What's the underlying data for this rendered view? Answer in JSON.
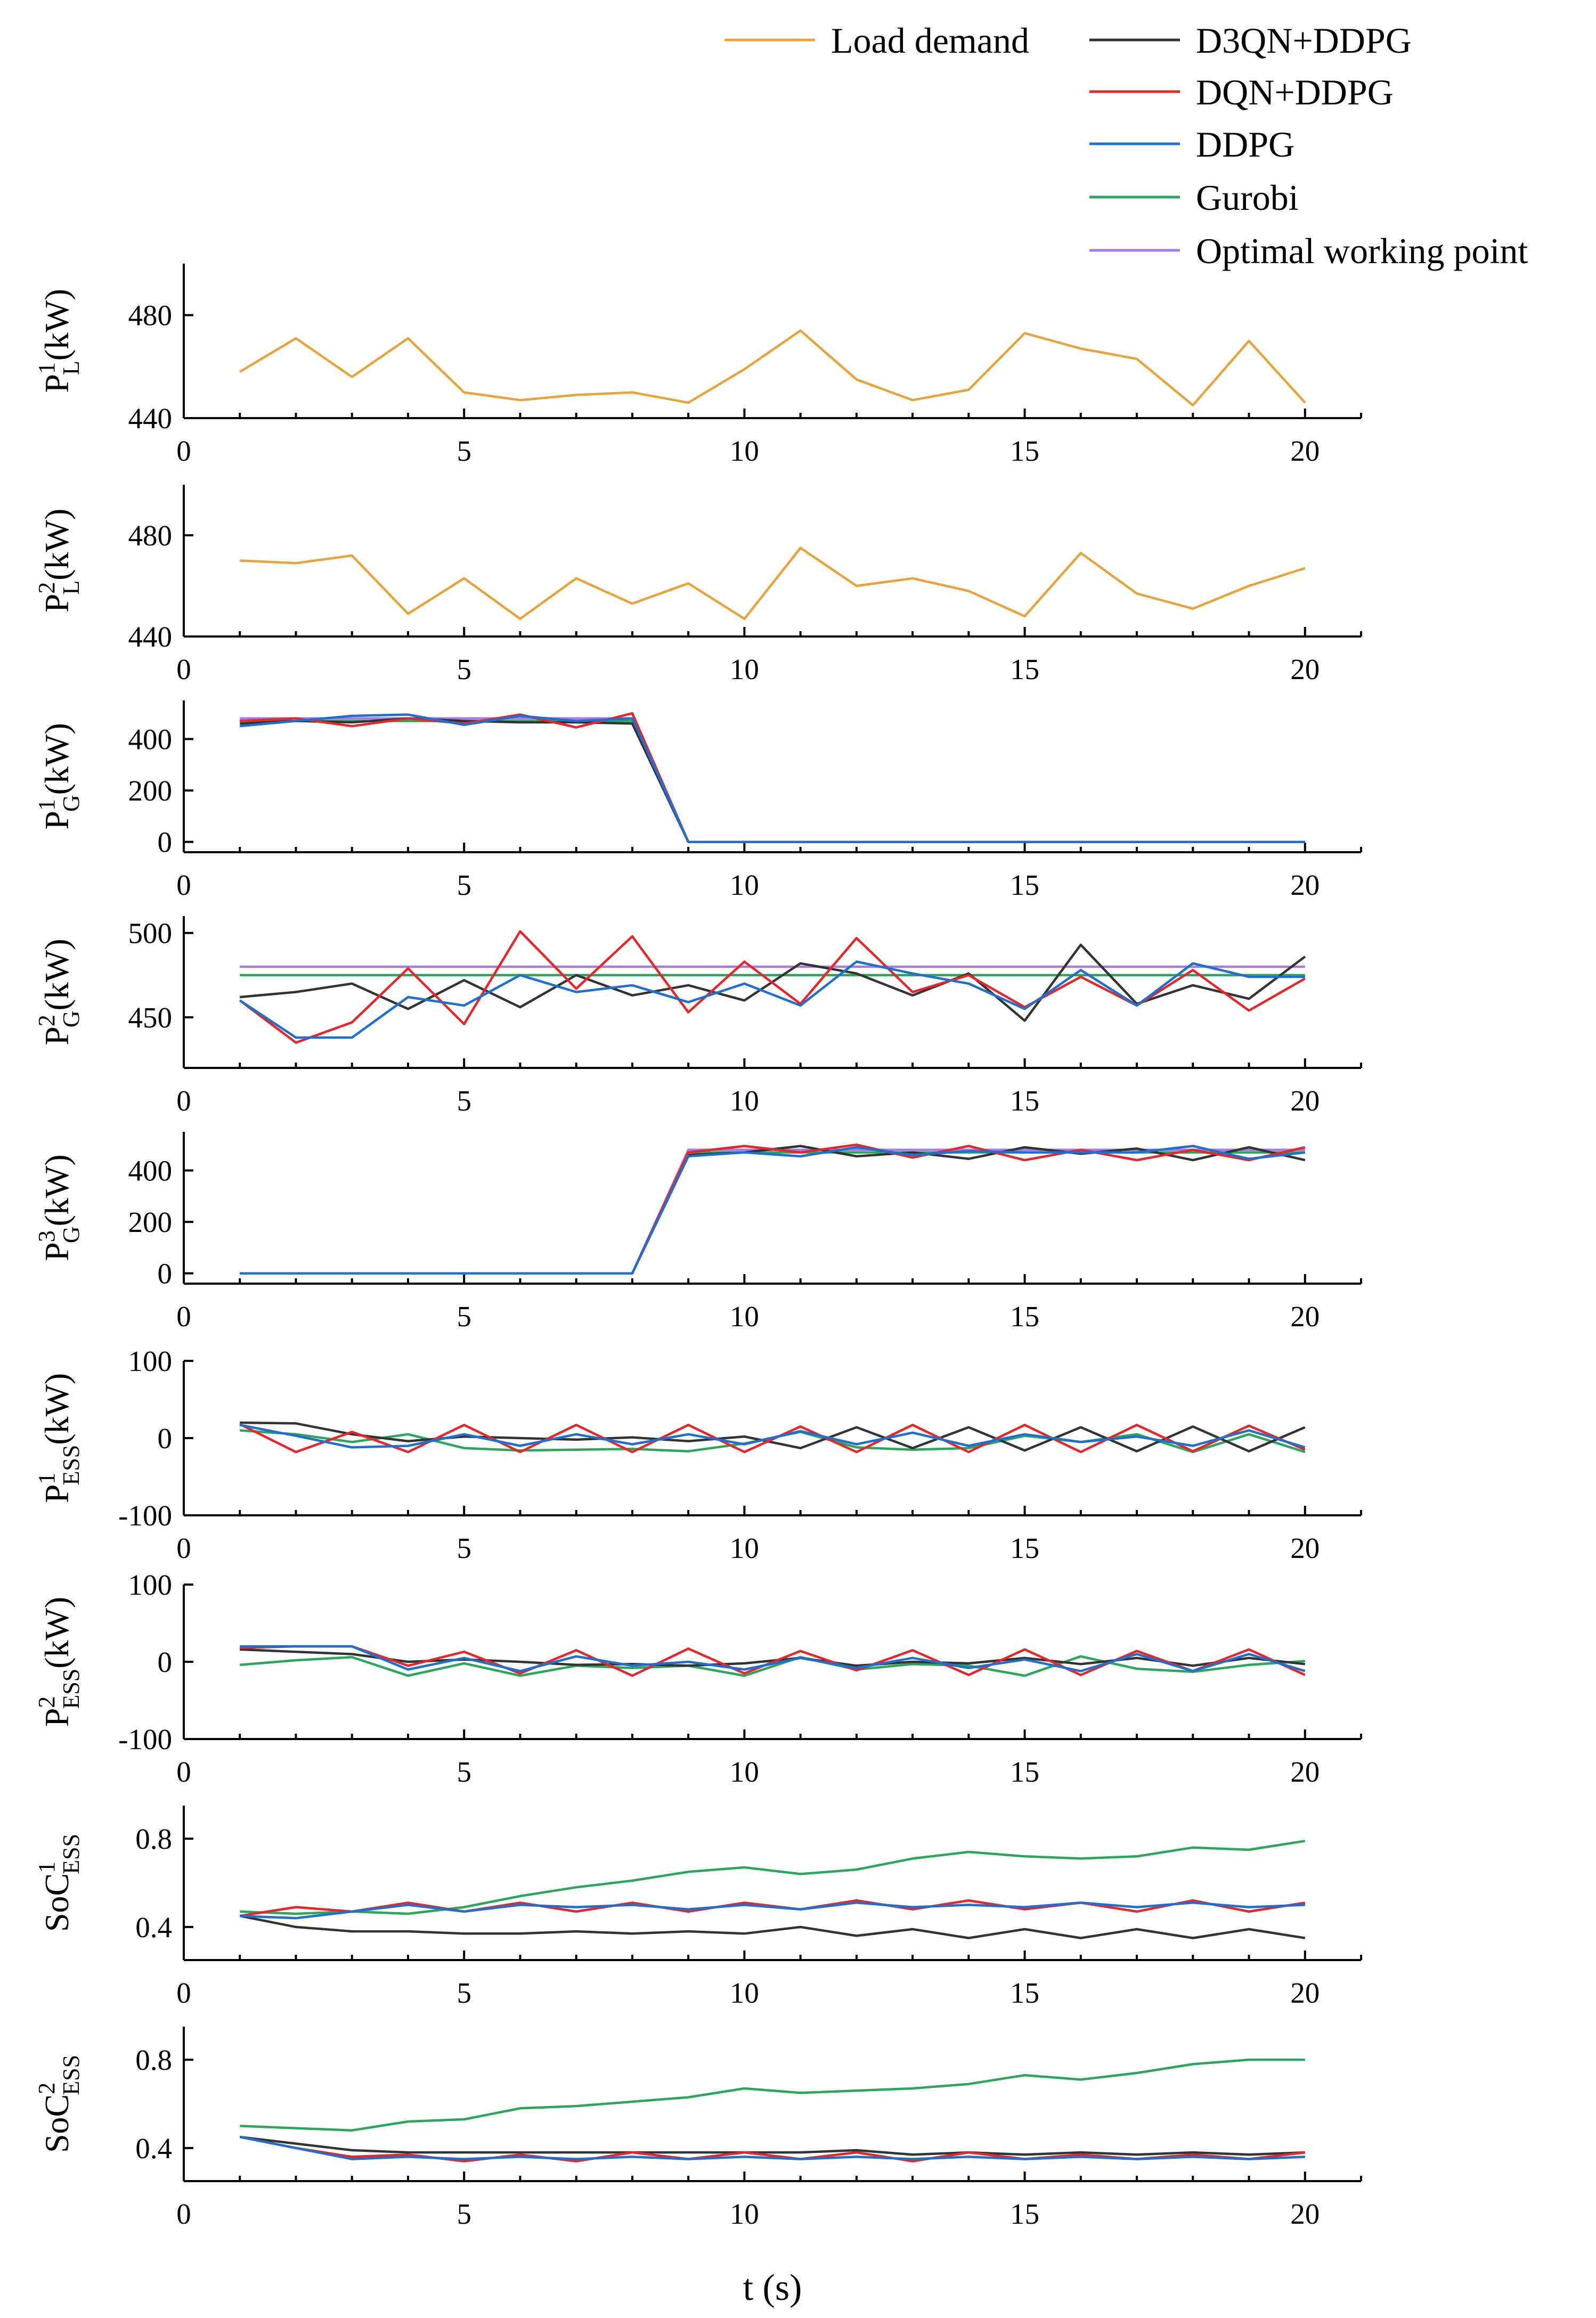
{
  "chart_data": {
    "type": "line",
    "xlabel": "t (s)",
    "xlim": [
      0,
      21
    ],
    "xticks": [
      0,
      5,
      10,
      15,
      20
    ],
    "x": [
      1,
      2,
      3,
      4,
      5,
      6,
      7,
      8,
      9,
      10,
      11,
      12,
      13,
      14,
      15,
      16,
      17,
      18,
      19,
      20
    ],
    "legend": [
      {
        "name": "Load demand",
        "color": "#E8A33A"
      },
      {
        "name": "D3QN+DDPG",
        "color": "#333333"
      },
      {
        "name": "DQN+DDPG",
        "color": "#E8262A"
      },
      {
        "name": "DDPG",
        "color": "#1F6FD1"
      },
      {
        "name": "Gurobi",
        "color": "#2BA65A"
      },
      {
        "name": "Optimal working point",
        "color": "#A97BE6"
      }
    ],
    "panels": [
      {
        "id": "PL1",
        "ylabel_base": "P",
        "ylabel_sup": "1",
        "ylabel_sub": "L",
        "ylabel_unit": "(kW)",
        "ylim": [
          440,
          500
        ],
        "yticks": [
          440,
          480
        ],
        "series": [
          {
            "name": "Load demand",
            "values": [
              458,
              471,
              456,
              471,
              450,
              447,
              449,
              450,
              446,
              459,
              474,
              455,
              447,
              451,
              473,
              467,
              463,
              445,
              470,
              446
            ]
          }
        ]
      },
      {
        "id": "PL2",
        "ylabel_base": "P",
        "ylabel_sup": "2",
        "ylabel_sub": "L",
        "ylabel_unit": "(kW)",
        "ylim": [
          440,
          500
        ],
        "yticks": [
          440,
          480
        ],
        "series": [
          {
            "name": "Load demand",
            "values": [
              470,
              469,
              472,
              449,
              463,
              447,
              463,
              453,
              461,
              447,
              475,
              460,
              463,
              458,
              448,
              473,
              457,
              451,
              460,
              467
            ]
          }
        ]
      },
      {
        "id": "PG1",
        "ylabel_base": "P",
        "ylabel_sup": "1",
        "ylabel_sub": "G",
        "ylabel_unit": "(kW)",
        "ylim": [
          -40,
          550
        ],
        "yticks": [
          0,
          200,
          400
        ],
        "series": [
          {
            "name": "Optimal working point",
            "values": [
              480,
              480,
              480,
              480,
              480,
              480,
              480,
              480,
              0,
              0,
              0,
              0,
              0,
              0,
              0,
              0,
              0,
              0,
              0,
              0
            ]
          },
          {
            "name": "Gurobi",
            "values": [
              470,
              470,
              470,
              470,
              470,
              470,
              470,
              470,
              0,
              0,
              0,
              0,
              0,
              0,
              0,
              0,
              0,
              0,
              0,
              0
            ]
          },
          {
            "name": "D3QN+DDPG",
            "values": [
              460,
              470,
              465,
              480,
              470,
              465,
              465,
              460,
              0,
              0,
              0,
              0,
              0,
              0,
              0,
              0,
              0,
              0,
              0,
              0
            ]
          },
          {
            "name": "DQN+DDPG",
            "values": [
              470,
              480,
              450,
              480,
              460,
              495,
              445,
              500,
              0,
              0,
              0,
              0,
              0,
              0,
              0,
              0,
              0,
              0,
              0,
              0
            ]
          },
          {
            "name": "DDPG",
            "values": [
              450,
              470,
              490,
              495,
              455,
              490,
              470,
              480,
              0,
              0,
              0,
              0,
              0,
              0,
              0,
              0,
              0,
              0,
              0,
              0
            ]
          }
        ]
      },
      {
        "id": "PG2",
        "ylabel_base": "P",
        "ylabel_sup": "2",
        "ylabel_sub": "G",
        "ylabel_unit": "(kW)",
        "ylim": [
          420,
          510
        ],
        "yticks": [
          450,
          500
        ],
        "series": [
          {
            "name": "Optimal working point",
            "values": [
              480,
              480,
              480,
              480,
              480,
              480,
              480,
              480,
              480,
              480,
              480,
              480,
              480,
              480,
              480,
              480,
              480,
              480,
              480,
              480
            ]
          },
          {
            "name": "Gurobi",
            "values": [
              475,
              475,
              475,
              475,
              475,
              475,
              475,
              475,
              475,
              475,
              475,
              475,
              475,
              475,
              475,
              475,
              475,
              475,
              475,
              475
            ]
          },
          {
            "name": "D3QN+DDPG",
            "values": [
              462,
              465,
              470,
              455,
              472,
              456,
              475,
              463,
              469,
              460,
              482,
              476,
              463,
              476,
              448,
              493,
              458,
              469,
              461,
              486
            ]
          },
          {
            "name": "DQN+DDPG",
            "values": [
              460,
              435,
              447,
              479,
              446,
              501,
              467,
              498,
              453,
              483,
              458,
              497,
              465,
              475,
              456,
              474,
              457,
              478,
              454,
              473
            ]
          },
          {
            "name": "DDPG",
            "values": [
              460,
              438,
              438,
              462,
              457,
              475,
              465,
              469,
              459,
              470,
              457,
              483,
              476,
              470,
              455,
              478,
              457,
              482,
              474,
              474
            ]
          }
        ]
      },
      {
        "id": "PG3",
        "ylabel_base": "P",
        "ylabel_sup": "3",
        "ylabel_sub": "G",
        "ylabel_unit": "(kW)",
        "ylim": [
          -40,
          550
        ],
        "yticks": [
          0,
          200,
          400
        ],
        "series": [
          {
            "name": "Optimal working point",
            "values": [
              0,
              0,
              0,
              0,
              0,
              0,
              0,
              0,
              480,
              480,
              480,
              480,
              480,
              480,
              480,
              480,
              480,
              480,
              480,
              480
            ]
          },
          {
            "name": "Gurobi",
            "values": [
              0,
              0,
              0,
              0,
              0,
              0,
              0,
              0,
              470,
              470,
              470,
              470,
              470,
              470,
              470,
              470,
              470,
              470,
              470,
              470
            ]
          },
          {
            "name": "D3QN+DDPG",
            "values": [
              0,
              0,
              0,
              0,
              0,
              0,
              0,
              0,
              460,
              470,
              495,
              455,
              470,
              445,
              490,
              465,
              485,
              440,
              490,
              440
            ]
          },
          {
            "name": "DQN+DDPG",
            "values": [
              0,
              0,
              0,
              0,
              0,
              0,
              0,
              0,
              470,
              495,
              470,
              500,
              450,
              495,
              440,
              480,
              440,
              480,
              440,
              490
            ]
          },
          {
            "name": "DDPG",
            "values": [
              0,
              0,
              0,
              0,
              0,
              0,
              0,
              0,
              455,
              470,
              455,
              490,
              460,
              475,
              470,
              470,
              470,
              495,
              445,
              470
            ]
          }
        ]
      },
      {
        "id": "PESS1",
        "ylabel_base": "P",
        "ylabel_sup": "1",
        "ylabel_sub": "ESS",
        "ylabel_unit": "(kW)",
        "ylim": [
          -100,
          100
        ],
        "yticks": [
          -100,
          0,
          100
        ],
        "series": [
          {
            "name": "Gurobi",
            "values": [
              10,
              5,
              -5,
              5,
              -13,
              -16,
              -15,
              -14,
              -17,
              -7,
              8,
              -12,
              -15,
              -13,
              3,
              -5,
              5,
              -18,
              5,
              -18
            ]
          },
          {
            "name": "D3QN+DDPG",
            "values": [
              20,
              19,
              5,
              -4,
              2,
              0,
              -2,
              1,
              -4,
              2,
              -13,
              14,
              -13,
              14,
              -16,
              14,
              -17,
              15,
              -17,
              14
            ]
          },
          {
            "name": "DQN+DDPG",
            "values": [
              18,
              -18,
              8,
              -18,
              17,
              -18,
              17,
              -18,
              17,
              -18,
              15,
              -18,
              17,
              -18,
              17,
              -18,
              17,
              -17,
              16,
              -15
            ]
          },
          {
            "name": "DDPG",
            "values": [
              17,
              3,
              -12,
              -10,
              5,
              -10,
              5,
              -8,
              5,
              -8,
              9,
              -8,
              7,
              -10,
              5,
              -5,
              2,
              -10,
              10,
              -12
            ]
          }
        ]
      },
      {
        "id": "PESS2",
        "ylabel_base": "P",
        "ylabel_sup": "2",
        "ylabel_sub": "ESS",
        "ylabel_unit": "(kW)",
        "ylim": [
          -100,
          100
        ],
        "yticks": [
          -100,
          0,
          100
        ],
        "series": [
          {
            "name": "Gurobi",
            "values": [
              -4,
              2,
              6,
              -18,
              -2,
              -18,
              -5,
              -8,
              -5,
              -18,
              6,
              -10,
              -3,
              -5,
              -18,
              7,
              -9,
              -13,
              -4,
              1
            ]
          },
          {
            "name": "D3QN+DDPG",
            "values": [
              16,
              13,
              10,
              0,
              3,
              0,
              -4,
              -3,
              -5,
              -2,
              5,
              -5,
              0,
              -2,
              5,
              -3,
              5,
              -5,
              5,
              -3
            ]
          },
          {
            "name": "DQN+DDPG",
            "values": [
              18,
              20,
              20,
              -5,
              13,
              -15,
              15,
              -18,
              17,
              -15,
              14,
              -11,
              15,
              -17,
              16,
              -17,
              14,
              -12,
              16,
              -17
            ]
          },
          {
            "name": "DDPG",
            "values": [
              20,
              20,
              20,
              -10,
              5,
              -12,
              7,
              -5,
              0,
              -10,
              5,
              -8,
              5,
              -8,
              3,
              -12,
              10,
              -12,
              10,
              -12
            ]
          }
        ]
      },
      {
        "id": "SoC1",
        "ylabel_base": "SoC",
        "ylabel_sup": "1",
        "ylabel_sub": "ESS",
        "ylabel_unit": "",
        "ylim": [
          0.25,
          0.95
        ],
        "yticks": [
          0.4,
          0.8
        ],
        "series": [
          {
            "name": "Gurobi",
            "values": [
              0.47,
              0.46,
              0.47,
              0.46,
              0.49,
              0.54,
              0.58,
              0.61,
              0.65,
              0.67,
              0.64,
              0.66,
              0.71,
              0.74,
              0.72,
              0.71,
              0.72,
              0.76,
              0.75,
              0.79
            ]
          },
          {
            "name": "D3QN+DDPG",
            "values": [
              0.45,
              0.4,
              0.38,
              0.38,
              0.37,
              0.37,
              0.38,
              0.37,
              0.38,
              0.37,
              0.4,
              0.36,
              0.39,
              0.35,
              0.39,
              0.35,
              0.39,
              0.35,
              0.39,
              0.35
            ]
          },
          {
            "name": "DQN+DDPG",
            "values": [
              0.45,
              0.49,
              0.47,
              0.51,
              0.47,
              0.51,
              0.47,
              0.51,
              0.47,
              0.51,
              0.48,
              0.52,
              0.48,
              0.52,
              0.48,
              0.51,
              0.47,
              0.52,
              0.47,
              0.51
            ]
          },
          {
            "name": "DDPG",
            "values": [
              0.45,
              0.44,
              0.47,
              0.5,
              0.47,
              0.5,
              0.49,
              0.5,
              0.48,
              0.5,
              0.48,
              0.51,
              0.49,
              0.5,
              0.49,
              0.51,
              0.49,
              0.51,
              0.49,
              0.5
            ]
          }
        ]
      },
      {
        "id": "SoC2",
        "ylabel_base": "SoC",
        "ylabel_sup": "2",
        "ylabel_sub": "ESS",
        "ylabel_unit": "",
        "ylim": [
          0.25,
          0.95
        ],
        "yticks": [
          0.4,
          0.8
        ],
        "series": [
          {
            "name": "Gurobi",
            "values": [
              0.5,
              0.49,
              0.48,
              0.52,
              0.53,
              0.58,
              0.59,
              0.61,
              0.63,
              0.67,
              0.65,
              0.66,
              0.67,
              0.69,
              0.73,
              0.71,
              0.74,
              0.78,
              0.8,
              0.8
            ]
          },
          {
            "name": "D3QN+DDPG",
            "values": [
              0.45,
              0.42,
              0.39,
              0.38,
              0.38,
              0.38,
              0.38,
              0.38,
              0.38,
              0.38,
              0.38,
              0.39,
              0.37,
              0.38,
              0.37,
              0.38,
              0.37,
              0.38,
              0.37,
              0.38
            ]
          },
          {
            "name": "DQN+DDPG",
            "values": [
              0.45,
              0.4,
              0.36,
              0.37,
              0.34,
              0.37,
              0.34,
              0.38,
              0.35,
              0.38,
              0.35,
              0.38,
              0.34,
              0.38,
              0.35,
              0.37,
              0.35,
              0.37,
              0.35,
              0.38
            ]
          },
          {
            "name": "DDPG",
            "values": [
              0.45,
              0.4,
              0.35,
              0.36,
              0.35,
              0.36,
              0.35,
              0.36,
              0.35,
              0.36,
              0.35,
              0.36,
              0.35,
              0.36,
              0.35,
              0.36,
              0.35,
              0.36,
              0.35,
              0.36
            ]
          }
        ]
      }
    ]
  }
}
